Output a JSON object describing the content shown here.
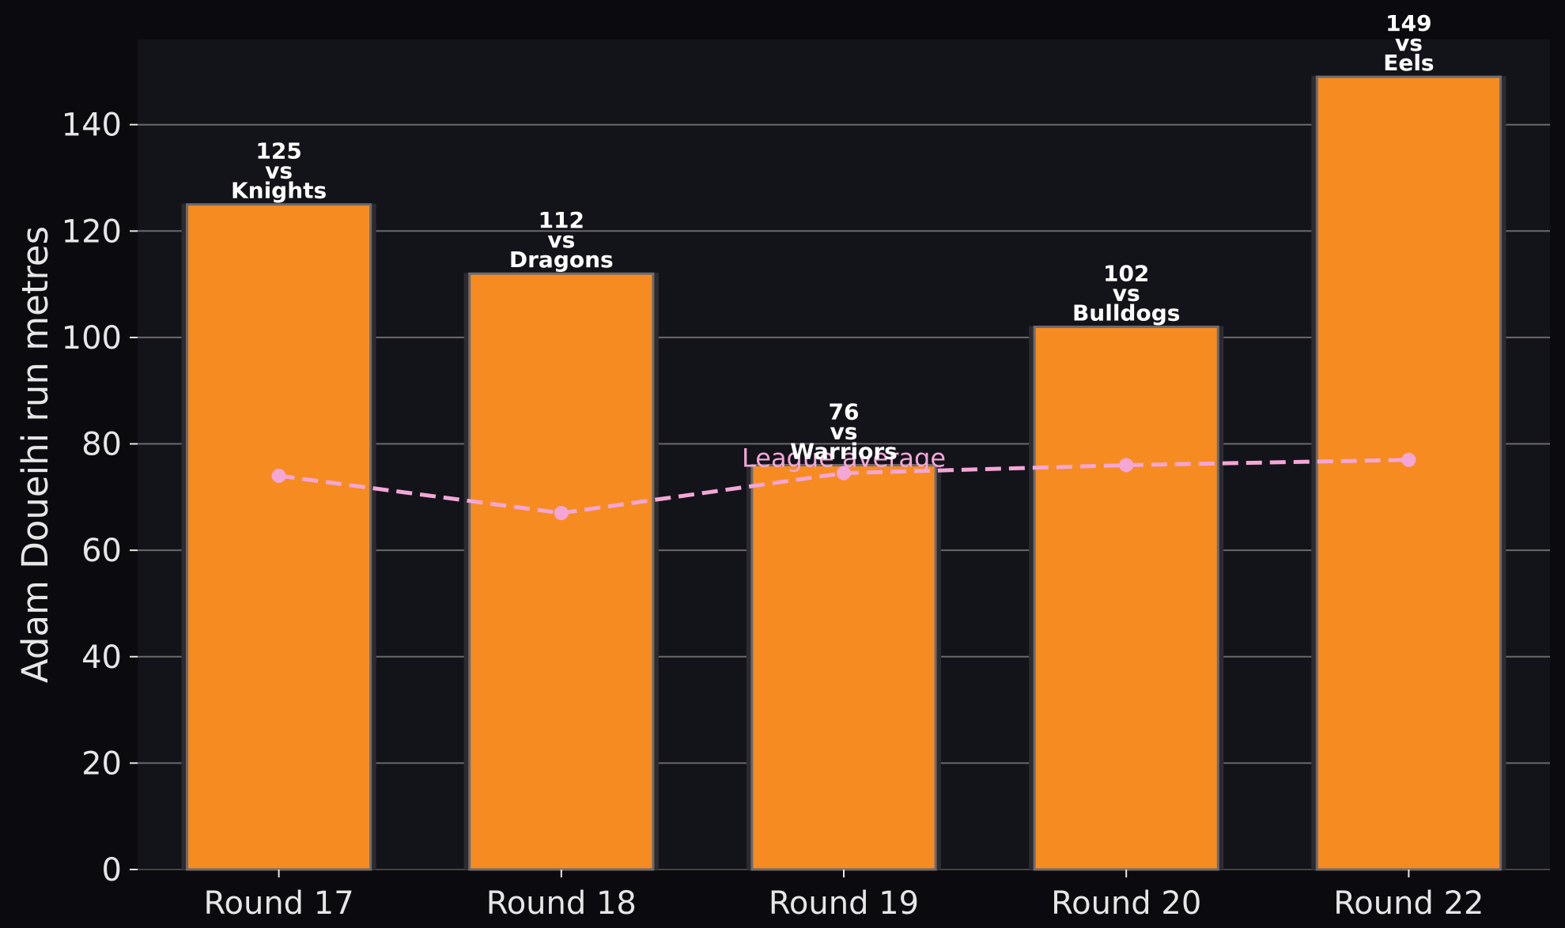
{
  "chart_data": {
    "type": "bar",
    "categories": [
      "Round 17",
      "Round 18",
      "Round 19",
      "Round 20",
      "Round 22"
    ],
    "series": [
      {
        "values": [
          125,
          112,
          76,
          102,
          149
        ],
        "bar_labels": [
          [
            "125",
            "vs",
            "Knights"
          ],
          [
            "112",
            "vs",
            "Dragons"
          ],
          [
            "76",
            "vs",
            "Warriors"
          ],
          [
            "102",
            "vs",
            "Bulldogs"
          ],
          [
            "149",
            "vs",
            "Eels"
          ]
        ],
        "color": "#f68b21"
      },
      {
        "name": "League average",
        "type": "line",
        "values": [
          74,
          67,
          74.5,
          76,
          77
        ],
        "color": "#f4a6d7",
        "style": "dashed"
      }
    ],
    "ylabel": "Adam Doueihi run metres",
    "xlabel": "",
    "ylim": [
      0,
      156
    ],
    "yticks": [
      0,
      20,
      40,
      60,
      80,
      100,
      120,
      140
    ],
    "grid": "horizontal"
  },
  "colors": {
    "background": "#0b0b0f",
    "plot_background": "#13131a",
    "gridline": "#6a6a6a",
    "bar_edge": "#6b6b70",
    "text": "#e6e6e6"
  }
}
